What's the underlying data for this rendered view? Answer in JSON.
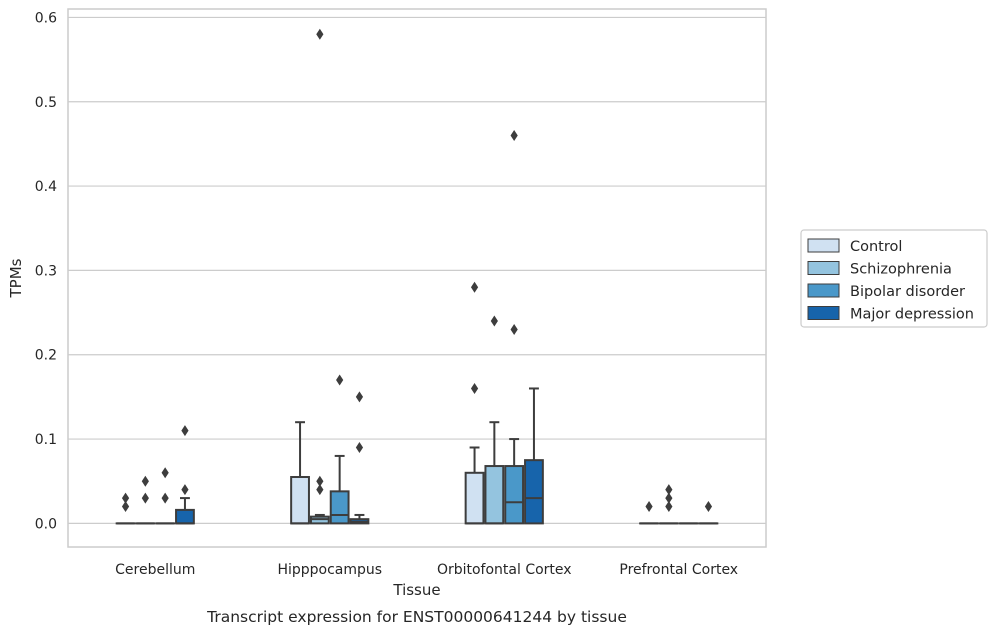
{
  "chart_data": {
    "type": "box",
    "caption": "Transcript expression for ENST00000641244 by tissue",
    "xlabel": "Tissue",
    "ylabel": "TPMs",
    "ylim": [
      -0.028,
      0.61
    ],
    "yticks": [
      0.0,
      0.1,
      0.2,
      0.3,
      0.4,
      0.5,
      0.6
    ],
    "ytick_labels": [
      "0.0",
      "0.1",
      "0.2",
      "0.3",
      "0.4",
      "0.5",
      "0.6"
    ],
    "grid": true,
    "legend_position": "right",
    "categories": [
      "Cerebellum",
      "Hipppocampus",
      "Orbitofontal Cortex",
      "Prefrontal Cortex"
    ],
    "series": [
      {
        "name": "Control",
        "color": "#d0e1f2",
        "boxes": [
          {
            "q1": 0,
            "median": 0,
            "q3": 0,
            "whislo": 0,
            "whishi": 0,
            "fliers": [
              0.02,
              0.03
            ]
          },
          {
            "q1": 0,
            "median": 0,
            "q3": 0.055,
            "whislo": 0,
            "whishi": 0.12,
            "fliers": []
          },
          {
            "q1": 0,
            "median": 0,
            "q3": 0.06,
            "whislo": 0,
            "whishi": 0.09,
            "fliers": [
              0.16,
              0.28
            ]
          },
          {
            "q1": 0,
            "median": 0,
            "q3": 0,
            "whislo": 0,
            "whishi": 0,
            "fliers": [
              0.02
            ]
          }
        ]
      },
      {
        "name": "Schizophrenia",
        "color": "#94c4df",
        "boxes": [
          {
            "q1": 0,
            "median": 0,
            "q3": 0,
            "whislo": 0,
            "whishi": 0,
            "fliers": [
              0.03,
              0.05
            ]
          },
          {
            "q1": 0,
            "median": 0.005,
            "q3": 0.008,
            "whislo": 0,
            "whishi": 0.01,
            "fliers": [
              0.04,
              0.05,
              0.58
            ]
          },
          {
            "q1": 0,
            "median": 0,
            "q3": 0.068,
            "whislo": 0,
            "whishi": 0.12,
            "fliers": [
              0.24
            ]
          },
          {
            "q1": 0,
            "median": 0,
            "q3": 0,
            "whislo": 0,
            "whishi": 0,
            "fliers": [
              0.02,
              0.03,
              0.04
            ]
          }
        ]
      },
      {
        "name": "Bipolar disorder",
        "color": "#4a98c9",
        "boxes": [
          {
            "q1": 0,
            "median": 0,
            "q3": 0,
            "whislo": 0,
            "whishi": 0,
            "fliers": [
              0.03,
              0.06
            ]
          },
          {
            "q1": 0,
            "median": 0.01,
            "q3": 0.038,
            "whislo": 0,
            "whishi": 0.08,
            "fliers": [
              0.17
            ]
          },
          {
            "q1": 0,
            "median": 0.025,
            "q3": 0.068,
            "whislo": 0,
            "whishi": 0.1,
            "fliers": [
              0.23,
              0.46
            ]
          },
          {
            "q1": 0,
            "median": 0,
            "q3": 0,
            "whislo": 0,
            "whishi": 0,
            "fliers": []
          }
        ]
      },
      {
        "name": "Major depression",
        "color": "#1764ab",
        "boxes": [
          {
            "q1": 0,
            "median": 0,
            "q3": 0.016,
            "whislo": 0,
            "whishi": 0.03,
            "fliers": [
              0.04,
              0.11
            ]
          },
          {
            "q1": 0,
            "median": 0.002,
            "q3": 0.005,
            "whislo": 0,
            "whishi": 0.01,
            "fliers": [
              0.09,
              0.15
            ]
          },
          {
            "q1": 0,
            "median": 0.03,
            "q3": 0.075,
            "whislo": 0,
            "whishi": 0.16,
            "fliers": []
          },
          {
            "q1": 0,
            "median": 0,
            "q3": 0,
            "whislo": 0,
            "whishi": 0,
            "fliers": [
              0.02
            ]
          }
        ]
      }
    ]
  }
}
